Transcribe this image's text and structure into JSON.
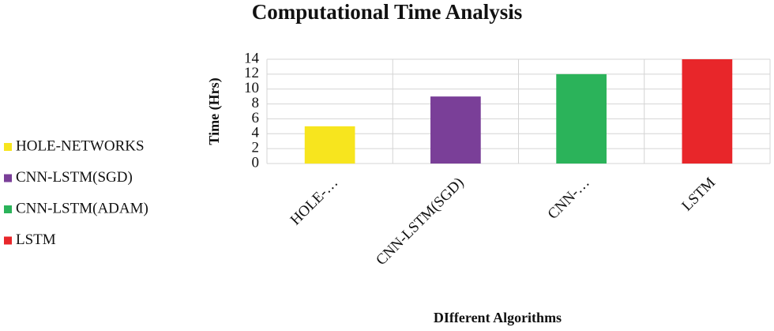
{
  "chart_data": {
    "type": "bar",
    "title": "Computational Time Analysis",
    "x_label": "DIfferent Algorithms",
    "y_label": "Time  (Hrs)",
    "categories": [
      "HOLE-…",
      "CNN-LSTM(SGD)",
      "CNN-…",
      "LSTM"
    ],
    "series": [
      {
        "name": "HOLE-NETWORKS",
        "color": "#f7e51e",
        "values": [
          5,
          null,
          null,
          null
        ]
      },
      {
        "name": "CNN-LSTM(SGD)",
        "color": "#7a3f98",
        "values": [
          null,
          9,
          null,
          null
        ]
      },
      {
        "name": "CNN-LSTM(ADAM)",
        "color": "#2bb35a",
        "values": [
          null,
          null,
          12,
          null
        ]
      },
      {
        "name": "LSTM",
        "color": "#e8262a",
        "values": [
          null,
          null,
          null,
          14
        ]
      }
    ],
    "ylim": [
      0,
      14
    ],
    "yticks": [
      0,
      2,
      4,
      6,
      8,
      10,
      12,
      14
    ],
    "grid": true
  }
}
